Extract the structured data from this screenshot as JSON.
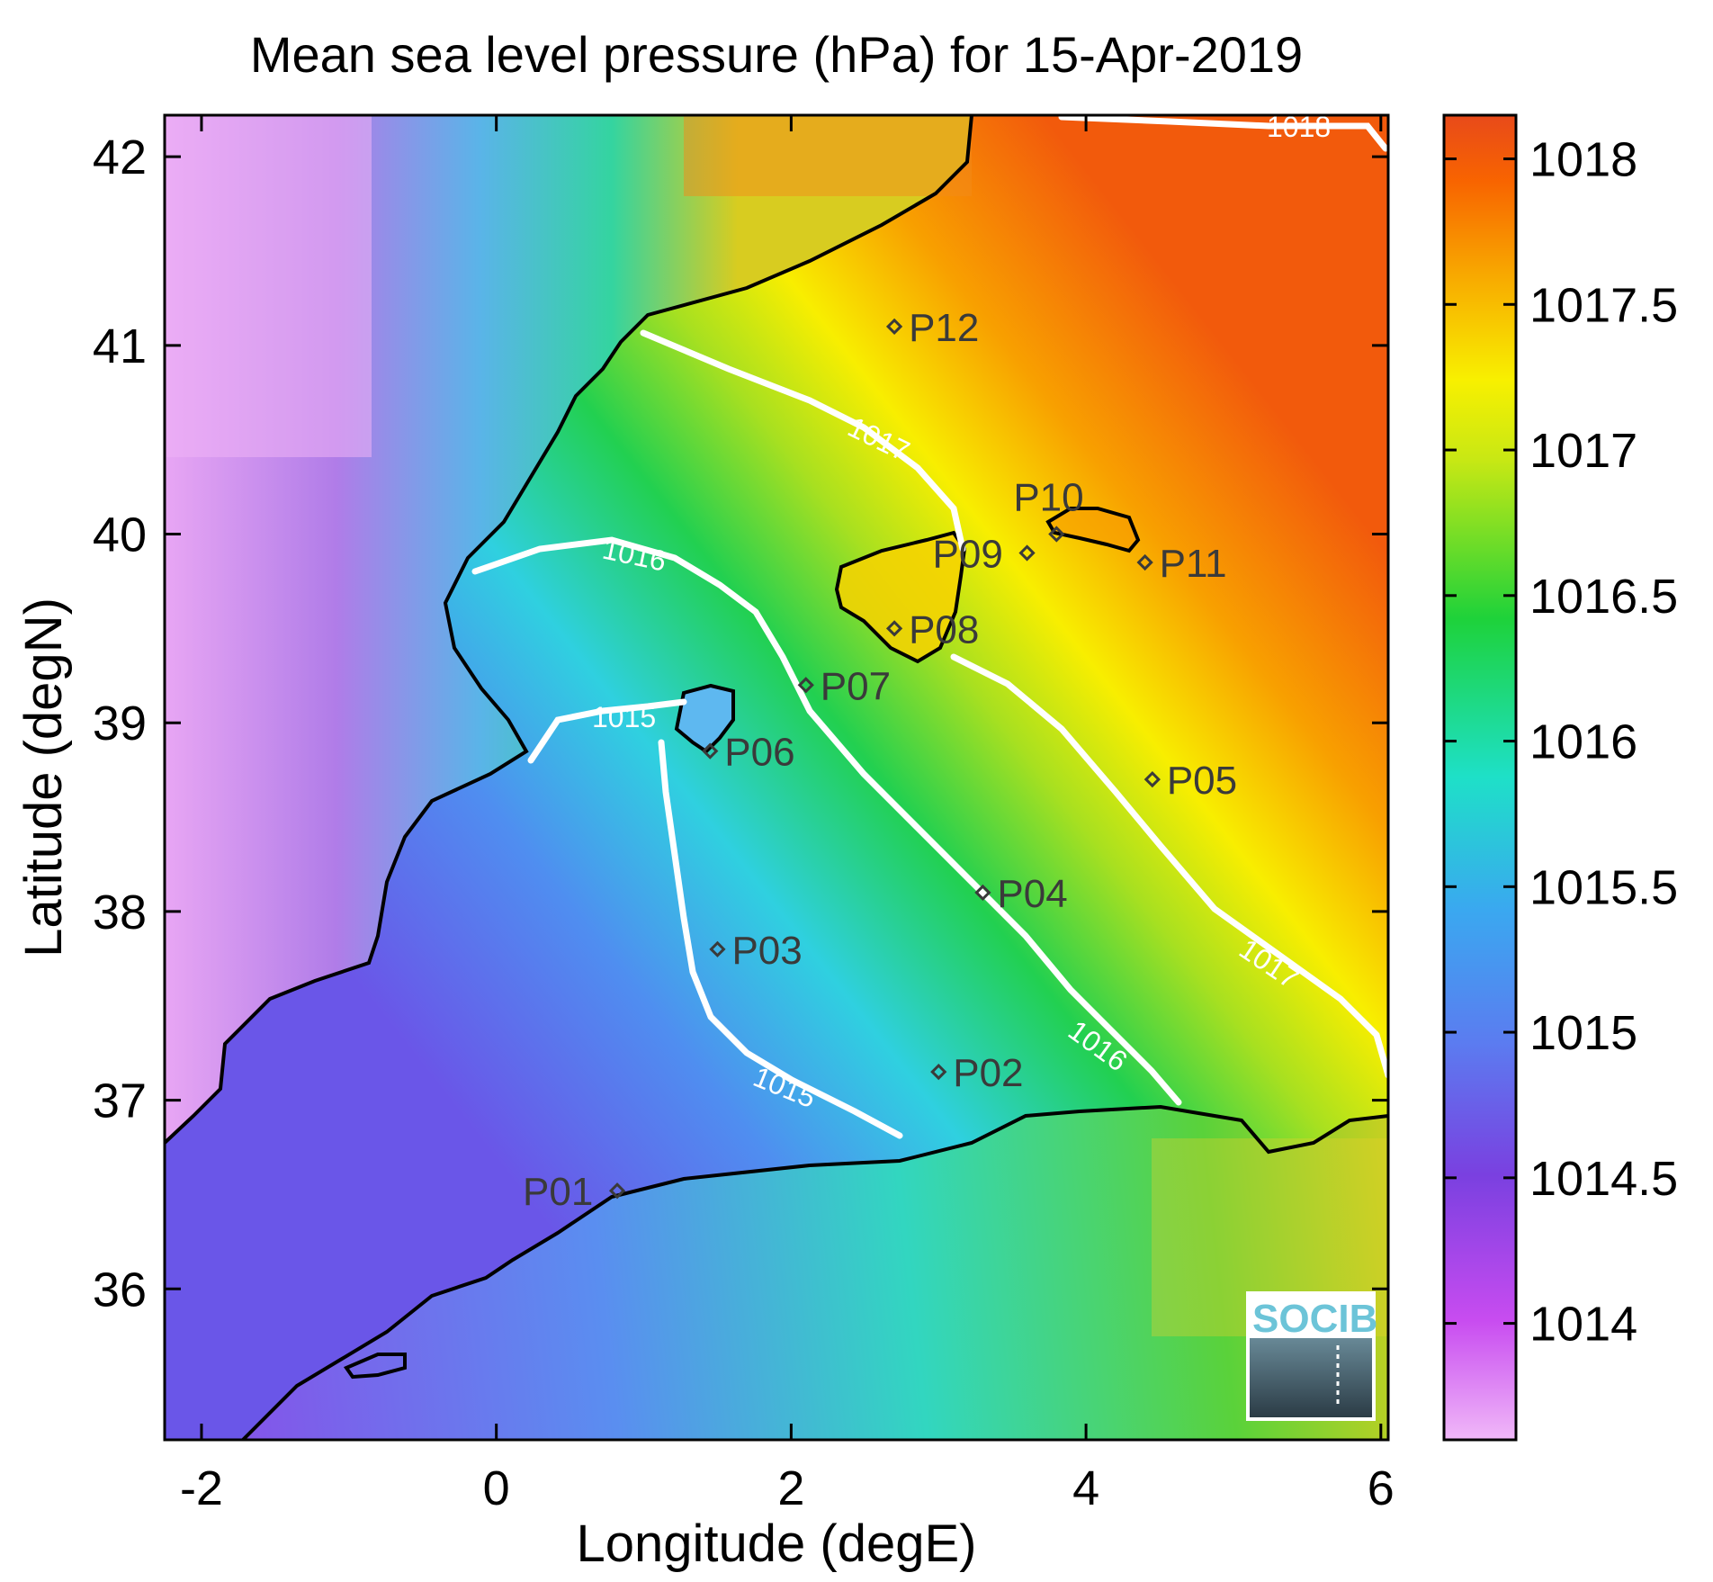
{
  "title": "Mean sea level pressure (hPa) for 15-Apr-2019",
  "xlabel": "Longitude (degE)",
  "ylabel": "Latitude (degN)",
  "xlim": [
    -2.25,
    6.05
  ],
  "ylim": [
    35.2,
    42.22
  ],
  "x_ticks": [
    "-2",
    "0",
    "2",
    "4",
    "6"
  ],
  "y_ticks": [
    "36",
    "37",
    "38",
    "39",
    "40",
    "41",
    "42"
  ],
  "colorbar": {
    "range": [
      1013.6,
      1018.15
    ],
    "ticks": [
      "1014",
      "1014.5",
      "1015",
      "1015.5",
      "1016",
      "1016.5",
      "1017",
      "1017.5",
      "1018"
    ]
  },
  "contour_labels": [
    "1018",
    "1017",
    "1017",
    "1016",
    "1016",
    "1015",
    "1015"
  ],
  "stations": [
    {
      "name": "P01",
      "lon": 0.82,
      "lat": 36.52
    },
    {
      "name": "P02",
      "lon": 3.0,
      "lat": 37.15
    },
    {
      "name": "P03",
      "lon": 1.5,
      "lat": 37.8
    },
    {
      "name": "P04",
      "lon": 3.3,
      "lat": 38.1
    },
    {
      "name": "P05",
      "lon": 4.45,
      "lat": 38.7
    },
    {
      "name": "P06",
      "lon": 1.45,
      "lat": 38.85
    },
    {
      "name": "P07",
      "lon": 2.1,
      "lat": 39.2
    },
    {
      "name": "P08",
      "lon": 2.7,
      "lat": 39.5
    },
    {
      "name": "P09",
      "lon": 3.6,
      "lat": 39.9
    },
    {
      "name": "P10",
      "lon": 3.8,
      "lat": 40.0
    },
    {
      "name": "P11",
      "lon": 4.4,
      "lat": 39.85
    },
    {
      "name": "P12",
      "lon": 2.7,
      "lat": 41.1
    }
  ],
  "logo": {
    "text": "SOCIB"
  },
  "colors": {
    "coastline": "#000000",
    "contour": "#ffffff",
    "station": "#3a3a3a"
  }
}
